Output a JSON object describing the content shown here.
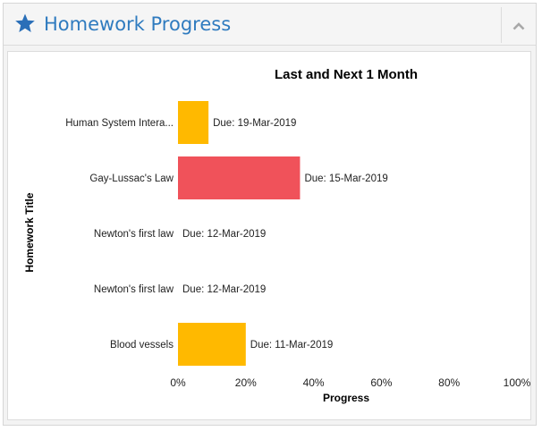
{
  "header": {
    "title": "Homework Progress",
    "icon": "star-icon",
    "collapse_icon": "chevron-up-icon",
    "accent_color": "#2f7bbf"
  },
  "chart_data": {
    "type": "bar",
    "orientation": "horizontal",
    "title": "Last and Next 1 Month",
    "xlabel": "Progress",
    "ylabel": "Homework Title",
    "xlim": [
      0,
      100
    ],
    "x_ticks": [
      "0%",
      "20%",
      "40%",
      "60%",
      "80%",
      "100%"
    ],
    "tick_values": [
      0,
      20,
      40,
      60,
      80,
      100
    ],
    "grid": false,
    "categories": [
      "Human System Intera...",
      "Gay-Lussac's Law",
      "Newton's first law",
      "Newton's first law",
      "Blood vessels"
    ],
    "values": [
      9,
      36,
      0,
      0,
      20
    ],
    "due_labels": [
      "Due: 19-Mar-2019",
      "Due: 15-Mar-2019",
      "Due: 12-Mar-2019",
      "Due: 12-Mar-2019",
      "Due: 11-Mar-2019"
    ],
    "colors": [
      "#ffb900",
      "#f0525a",
      "#ffb900",
      "#ffb900",
      "#ffb900"
    ]
  }
}
